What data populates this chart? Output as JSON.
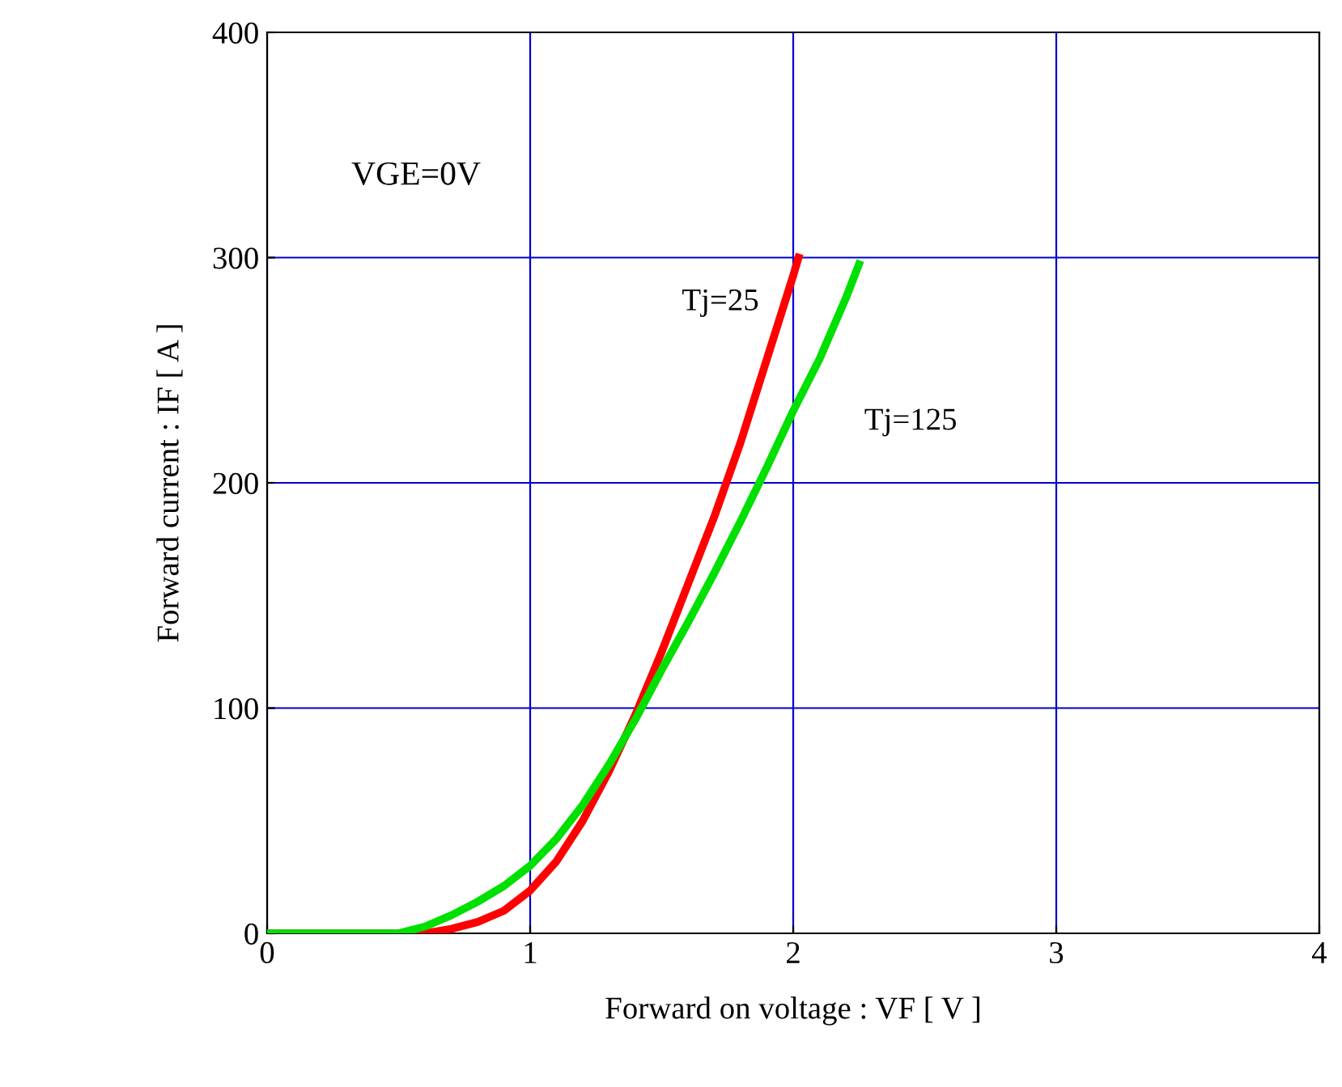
{
  "chart_data": {
    "type": "line",
    "xlabel": "Forward on voltage : VF [ V ]",
    "ylabel": "Forward current : IF [ A ]",
    "xlim": [
      0,
      4
    ],
    "ylim": [
      0,
      400
    ],
    "xticks": [
      0,
      1,
      2,
      3,
      4
    ],
    "yticks": [
      0,
      100,
      200,
      300,
      400
    ],
    "grid": true,
    "legend": false,
    "annotations": [
      "VGE=0V"
    ],
    "series": [
      {
        "name": "Tj=25",
        "color": "#ff0000",
        "x": [
          0,
          0.6,
          0.7,
          0.8,
          0.9,
          1.0,
          1.1,
          1.2,
          1.3,
          1.4,
          1.5,
          1.6,
          1.7,
          1.8,
          1.9,
          2.0,
          2.02
        ],
        "values": [
          0,
          0,
          2,
          5,
          10,
          19,
          32,
          50,
          72,
          97,
          125,
          155,
          185,
          218,
          255,
          292,
          300
        ]
      },
      {
        "name": "Tj=125",
        "color": "#00e000",
        "x": [
          0,
          0.5,
          0.6,
          0.7,
          0.8,
          0.9,
          1.0,
          1.1,
          1.2,
          1.3,
          1.4,
          1.5,
          1.6,
          1.7,
          1.8,
          1.9,
          2.0,
          2.1,
          2.2,
          2.25
        ],
        "values": [
          0,
          0,
          3,
          8,
          14,
          21,
          30,
          42,
          57,
          75,
          95,
          117,
          138,
          160,
          183,
          207,
          232,
          255,
          282,
          297
        ]
      }
    ]
  }
}
